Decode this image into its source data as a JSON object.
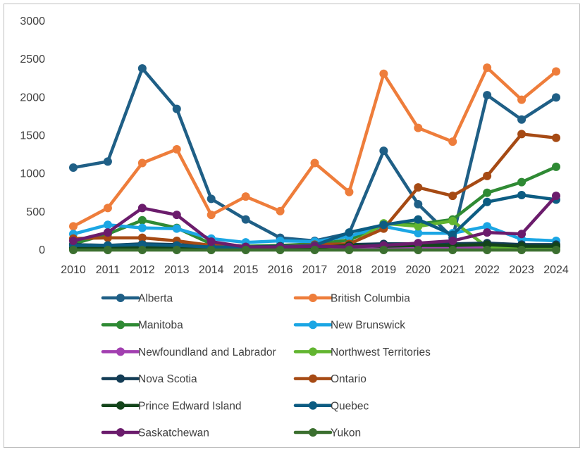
{
  "chart_data": {
    "type": "line",
    "title": "",
    "xlabel": "",
    "ylabel": "",
    "x": [
      2010,
      2011,
      2012,
      2013,
      2014,
      2015,
      2016,
      2017,
      2018,
      2019,
      2020,
      2021,
      2022,
      2023,
      2024
    ],
    "ylim": [
      0,
      3000
    ],
    "yticks": [
      0,
      500,
      1000,
      1500,
      2000,
      2500,
      3000
    ],
    "grid": false,
    "legend_position": "bottom",
    "series": [
      {
        "name": "Alberta",
        "color": "#1f5f86",
        "values": [
          1080,
          1160,
          2380,
          1850,
          670,
          400,
          160,
          120,
          220,
          1300,
          600,
          160,
          2030,
          1710,
          2000
        ]
      },
      {
        "name": "British Columbia",
        "color": "#ee7d3b",
        "values": [
          310,
          550,
          1140,
          1320,
          460,
          700,
          510,
          1140,
          760,
          2310,
          1600,
          1420,
          2390,
          1970,
          2340
        ]
      },
      {
        "name": "Manitoba",
        "color": "#2f8a34",
        "values": [
          80,
          210,
          390,
          290,
          80,
          50,
          60,
          80,
          130,
          340,
          340,
          400,
          750,
          890,
          1090
        ]
      },
      {
        "name": "New Brunswick",
        "color": "#1ba6e4",
        "values": [
          210,
          330,
          290,
          280,
          150,
          100,
          120,
          110,
          180,
          310,
          220,
          220,
          310,
          140,
          120
        ]
      },
      {
        "name": "Newfoundland and Labrador",
        "color": "#a23fb0",
        "values": [
          20,
          30,
          40,
          30,
          20,
          20,
          20,
          20,
          20,
          30,
          30,
          30,
          40,
          30,
          30
        ]
      },
      {
        "name": "Northwest Territories",
        "color": "#62b530",
        "values": [
          10,
          10,
          20,
          20,
          10,
          10,
          10,
          20,
          60,
          350,
          310,
          380,
          40,
          30,
          20
        ]
      },
      {
        "name": "Nova Scotia",
        "color": "#133c55",
        "values": [
          70,
          60,
          80,
          70,
          50,
          40,
          50,
          60,
          70,
          80,
          80,
          80,
          90,
          70,
          70
        ]
      },
      {
        "name": "Ontario",
        "color": "#a64a14",
        "values": [
          150,
          160,
          160,
          120,
          60,
          40,
          40,
          70,
          80,
          280,
          820,
          710,
          970,
          1520,
          1470
        ]
      },
      {
        "name": "Prince Edward Island",
        "color": "#13441a",
        "values": [
          30,
          30,
          40,
          30,
          20,
          20,
          20,
          30,
          60,
          50,
          60,
          60,
          70,
          50,
          50
        ]
      },
      {
        "name": "Quebec",
        "color": "#0c5c82",
        "values": [
          60,
          60,
          70,
          60,
          40,
          40,
          40,
          60,
          230,
          330,
          400,
          200,
          630,
          720,
          660
        ]
      },
      {
        "name": "Saskatchewan",
        "color": "#6b1c6c",
        "values": [
          120,
          230,
          550,
          460,
          110,
          40,
          40,
          50,
          40,
          60,
          90,
          120,
          230,
          210,
          710
        ]
      },
      {
        "name": "Yukon",
        "color": "#3b6f2f",
        "values": [
          0,
          0,
          0,
          0,
          0,
          0,
          0,
          0,
          0,
          0,
          0,
          0,
          0,
          0,
          0
        ]
      }
    ]
  }
}
